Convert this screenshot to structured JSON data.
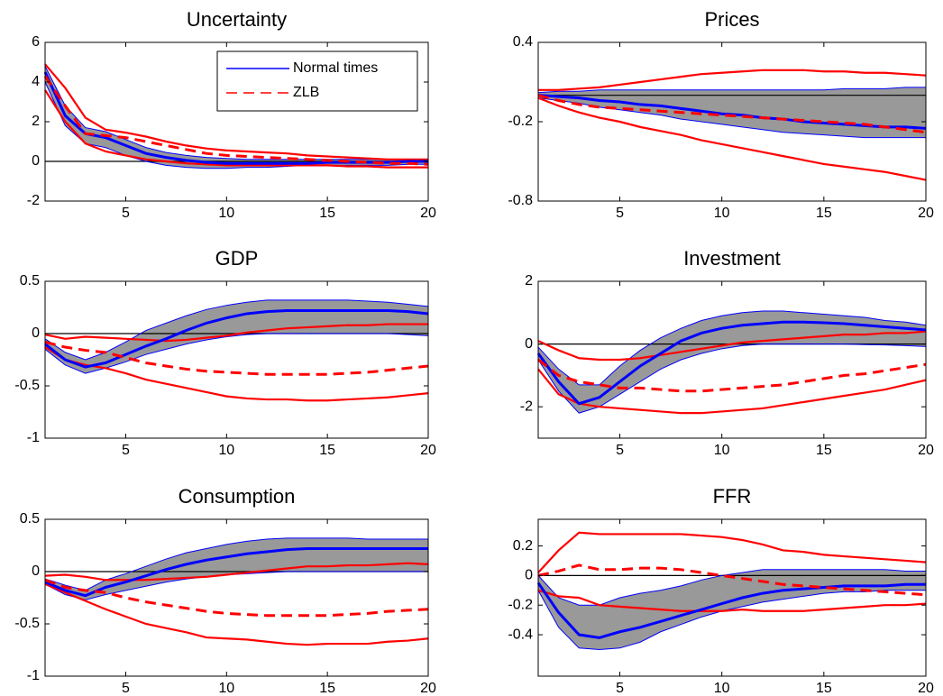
{
  "chart_data": [
    {
      "type": "line",
      "title": "Uncertainty",
      "legend": "upper right",
      "zero_line": true,
      "x": [
        1,
        2,
        3,
        4,
        5,
        6,
        7,
        8,
        9,
        10,
        11,
        12,
        13,
        14,
        15,
        16,
        17,
        18,
        19,
        20
      ],
      "xlim": [
        1,
        20
      ],
      "xticks": [
        5,
        10,
        15,
        20
      ],
      "ylim": [
        -2,
        6
      ],
      "yticks": [
        -2,
        0,
        2,
        4,
        6
      ],
      "series": [
        {
          "name": "Normal times",
          "color": "#0000ff",
          "band_fill": "#999999",
          "dash": false,
          "values": [
            4.5,
            2.3,
            1.4,
            1.2,
            0.8,
            0.4,
            0.2,
            0.05,
            -0.05,
            -0.1,
            -0.1,
            -0.1,
            -0.1,
            -0.1,
            -0.05,
            -0.05,
            -0.05,
            -0.05,
            0,
            0
          ],
          "lower": [
            4.0,
            1.8,
            0.9,
            0.7,
            0.3,
            0,
            -0.2,
            -0.3,
            -0.35,
            -0.35,
            -0.3,
            -0.3,
            -0.25,
            -0.2,
            -0.2,
            -0.2,
            -0.2,
            -0.2,
            -0.15,
            -0.15
          ],
          "upper": [
            4.8,
            2.8,
            1.7,
            1.5,
            1.1,
            0.7,
            0.45,
            0.3,
            0.2,
            0.15,
            0.1,
            0.1,
            0.1,
            0.1,
            0.1,
            0.1,
            0.1,
            0.1,
            0.1,
            0.1
          ]
        },
        {
          "name": "ZLB",
          "color": "#ff0000",
          "dash": true,
          "values": [
            4.3,
            2.8,
            1.4,
            1.3,
            1.2,
            1.0,
            0.8,
            0.6,
            0.4,
            0.3,
            0.25,
            0.2,
            0.15,
            0.1,
            0.05,
            0,
            -0.05,
            -0.1,
            -0.1,
            -0.15
          ],
          "lower": [
            3.6,
            2.0,
            0.9,
            0.5,
            0.3,
            0.1,
            0,
            -0.1,
            -0.15,
            -0.2,
            -0.2,
            -0.2,
            -0.2,
            -0.2,
            -0.2,
            -0.25,
            -0.25,
            -0.3,
            -0.3,
            -0.3
          ],
          "upper": [
            4.9,
            3.7,
            2.2,
            1.6,
            1.45,
            1.25,
            1.0,
            0.8,
            0.65,
            0.55,
            0.5,
            0.45,
            0.4,
            0.3,
            0.25,
            0.2,
            0.15,
            0.1,
            0.1,
            0.1
          ]
        }
      ]
    },
    {
      "type": "line",
      "title": "Prices",
      "zero_line": true,
      "x": [
        1,
        2,
        3,
        4,
        5,
        6,
        7,
        8,
        9,
        10,
        11,
        12,
        13,
        14,
        15,
        16,
        17,
        18,
        19,
        20
      ],
      "xlim": [
        1,
        20
      ],
      "xticks": [
        5,
        10,
        15,
        20
      ],
      "ylim": [
        -0.8,
        0.4
      ],
      "yticks": [
        -0.8,
        -0.2,
        0.4
      ],
      "series": [
        {
          "color": "#0000ff",
          "band_fill": "#999999",
          "dash": false,
          "values": [
            0,
            -0.01,
            -0.02,
            -0.04,
            -0.05,
            -0.07,
            -0.08,
            -0.1,
            -0.12,
            -0.14,
            -0.15,
            -0.17,
            -0.18,
            -0.2,
            -0.21,
            -0.22,
            -0.23,
            -0.24,
            -0.24,
            -0.25
          ],
          "lower": [
            -0.02,
            -0.04,
            -0.06,
            -0.09,
            -0.11,
            -0.13,
            -0.15,
            -0.18,
            -0.2,
            -0.22,
            -0.24,
            -0.26,
            -0.28,
            -0.29,
            -0.3,
            -0.31,
            -0.32,
            -0.32,
            -0.32,
            -0.32
          ],
          "upper": [
            0.02,
            0.03,
            0.03,
            0.04,
            0.04,
            0.04,
            0.04,
            0.04,
            0.04,
            0.04,
            0.04,
            0.04,
            0.04,
            0.04,
            0.04,
            0.05,
            0.05,
            0.05,
            0.06,
            0.06
          ]
        },
        {
          "color": "#ff0000",
          "dash": true,
          "values": [
            0,
            -0.04,
            -0.07,
            -0.09,
            -0.1,
            -0.11,
            -0.12,
            -0.13,
            -0.14,
            -0.15,
            -0.16,
            -0.17,
            -0.18,
            -0.19,
            -0.2,
            -0.21,
            -0.22,
            -0.24,
            -0.26,
            -0.28
          ],
          "lower": [
            -0.02,
            -0.08,
            -0.13,
            -0.17,
            -0.2,
            -0.24,
            -0.27,
            -0.3,
            -0.34,
            -0.37,
            -0.4,
            -0.43,
            -0.46,
            -0.49,
            -0.52,
            -0.54,
            -0.56,
            -0.58,
            -0.61,
            -0.64
          ],
          "upper": [
            0.04,
            0.04,
            0.05,
            0.06,
            0.08,
            0.1,
            0.12,
            0.14,
            0.16,
            0.17,
            0.18,
            0.19,
            0.19,
            0.19,
            0.18,
            0.18,
            0.17,
            0.17,
            0.16,
            0.15
          ]
        }
      ]
    },
    {
      "type": "line",
      "title": "GDP",
      "zero_line": true,
      "x": [
        1,
        2,
        3,
        4,
        5,
        6,
        7,
        8,
        9,
        10,
        11,
        12,
        13,
        14,
        15,
        16,
        17,
        18,
        19,
        20
      ],
      "xlim": [
        1,
        20
      ],
      "xticks": [
        5,
        10,
        15,
        20
      ],
      "ylim": [
        -1,
        0.5
      ],
      "yticks": [
        -1,
        -0.5,
        0,
        0.5
      ],
      "series": [
        {
          "color": "#0000ff",
          "band_fill": "#999999",
          "dash": false,
          "values": [
            -0.1,
            -0.25,
            -0.32,
            -0.28,
            -0.2,
            -0.12,
            -0.05,
            0.03,
            0.1,
            0.15,
            0.19,
            0.21,
            0.22,
            0.22,
            0.22,
            0.22,
            0.22,
            0.22,
            0.21,
            0.19
          ],
          "lower": [
            -0.15,
            -0.3,
            -0.38,
            -0.33,
            -0.27,
            -0.2,
            -0.15,
            -0.1,
            -0.06,
            -0.03,
            -0.01,
            0,
            0,
            0,
            0,
            0,
            0,
            0,
            -0.01,
            -0.02
          ],
          "upper": [
            -0.05,
            -0.18,
            -0.25,
            -0.18,
            -0.08,
            0.03,
            0.1,
            0.17,
            0.23,
            0.27,
            0.3,
            0.32,
            0.32,
            0.32,
            0.32,
            0.32,
            0.31,
            0.3,
            0.28,
            0.26
          ]
        },
        {
          "color": "#ff0000",
          "dash": true,
          "values": [
            -0.08,
            -0.13,
            -0.16,
            -0.18,
            -0.23,
            -0.28,
            -0.31,
            -0.34,
            -0.36,
            -0.37,
            -0.38,
            -0.39,
            -0.39,
            -0.39,
            -0.39,
            -0.38,
            -0.37,
            -0.35,
            -0.33,
            -0.31
          ],
          "lower": [
            -0.13,
            -0.25,
            -0.3,
            -0.33,
            -0.38,
            -0.44,
            -0.48,
            -0.52,
            -0.56,
            -0.6,
            -0.62,
            -0.63,
            -0.63,
            -0.64,
            -0.64,
            -0.63,
            -0.62,
            -0.61,
            -0.59,
            -0.57
          ],
          "upper": [
            -0.01,
            -0.05,
            -0.03,
            -0.04,
            -0.05,
            -0.06,
            -0.07,
            -0.06,
            -0.04,
            -0.02,
            0.01,
            0.03,
            0.05,
            0.06,
            0.07,
            0.08,
            0.08,
            0.09,
            0.09,
            0.09
          ]
        }
      ]
    },
    {
      "type": "line",
      "title": "Investment",
      "zero_line": true,
      "x": [
        1,
        2,
        3,
        4,
        5,
        6,
        7,
        8,
        9,
        10,
        11,
        12,
        13,
        14,
        15,
        16,
        17,
        18,
        19,
        20
      ],
      "xlim": [
        1,
        20
      ],
      "xticks": [
        5,
        10,
        15,
        20
      ],
      "ylim": [
        -3,
        2
      ],
      "yticks": [
        -2,
        0,
        2
      ],
      "series": [
        {
          "color": "#0000ff",
          "band_fill": "#999999",
          "dash": false,
          "values": [
            -0.3,
            -1.2,
            -1.9,
            -1.7,
            -1.2,
            -0.7,
            -0.3,
            0.1,
            0.35,
            0.5,
            0.6,
            0.65,
            0.7,
            0.7,
            0.68,
            0.65,
            0.6,
            0.55,
            0.5,
            0.45
          ],
          "lower": [
            -0.5,
            -1.5,
            -2.2,
            -2.0,
            -1.6,
            -1.2,
            -0.8,
            -0.5,
            -0.3,
            -0.15,
            -0.05,
            0,
            0,
            0,
            0,
            0,
            -0.02,
            -0.03,
            -0.05,
            -0.08
          ],
          "upper": [
            -0.1,
            -0.8,
            -1.3,
            -1.3,
            -0.7,
            -0.2,
            0.2,
            0.5,
            0.75,
            0.9,
            1.0,
            1.05,
            1.05,
            1.0,
            0.95,
            0.9,
            0.85,
            0.75,
            0.7,
            0.6
          ]
        },
        {
          "color": "#ff0000",
          "dash": true,
          "values": [
            -0.5,
            -1.0,
            -1.2,
            -1.3,
            -1.4,
            -1.4,
            -1.45,
            -1.5,
            -1.5,
            -1.45,
            -1.4,
            -1.35,
            -1.3,
            -1.2,
            -1.1,
            -1.0,
            -0.95,
            -0.85,
            -0.75,
            -0.65
          ],
          "lower": [
            -0.8,
            -1.6,
            -1.9,
            -2.0,
            -2.05,
            -2.1,
            -2.15,
            -2.2,
            -2.2,
            -2.15,
            -2.1,
            -2.05,
            -1.95,
            -1.85,
            -1.75,
            -1.65,
            -1.55,
            -1.45,
            -1.3,
            -1.15
          ],
          "upper": [
            0.1,
            -0.2,
            -0.45,
            -0.5,
            -0.5,
            -0.45,
            -0.35,
            -0.25,
            -0.15,
            -0.05,
            0.05,
            0.1,
            0.15,
            0.2,
            0.25,
            0.3,
            0.3,
            0.35,
            0.35,
            0.4
          ]
        }
      ]
    },
    {
      "type": "line",
      "title": "Consumption",
      "zero_line": true,
      "x": [
        1,
        2,
        3,
        4,
        5,
        6,
        7,
        8,
        9,
        10,
        11,
        12,
        13,
        14,
        15,
        16,
        17,
        18,
        19,
        20
      ],
      "xlim": [
        1,
        20
      ],
      "xticks": [
        5,
        10,
        15,
        20
      ],
      "ylim": [
        -1,
        0.5
      ],
      "yticks": [
        -1,
        -0.5,
        0,
        0.5
      ],
      "series": [
        {
          "color": "#0000ff",
          "band_fill": "#999999",
          "dash": false,
          "values": [
            -0.1,
            -0.18,
            -0.23,
            -0.15,
            -0.1,
            -0.04,
            0.02,
            0.07,
            0.11,
            0.14,
            0.17,
            0.19,
            0.21,
            0.22,
            0.22,
            0.22,
            0.22,
            0.22,
            0.22,
            0.22
          ],
          "lower": [
            -0.12,
            -0.22,
            -0.27,
            -0.22,
            -0.18,
            -0.14,
            -0.1,
            -0.07,
            -0.05,
            -0.03,
            -0.02,
            -0.01,
            0,
            0,
            0,
            0,
            0,
            0,
            0,
            0
          ],
          "upper": [
            -0.07,
            -0.13,
            -0.18,
            -0.08,
            -0.02,
            0.05,
            0.12,
            0.18,
            0.22,
            0.26,
            0.29,
            0.31,
            0.32,
            0.32,
            0.32,
            0.32,
            0.31,
            0.31,
            0.31,
            0.31
          ]
        },
        {
          "color": "#ff0000",
          "dash": true,
          "values": [
            -0.08,
            -0.15,
            -0.18,
            -0.2,
            -0.25,
            -0.29,
            -0.32,
            -0.35,
            -0.38,
            -0.4,
            -0.41,
            -0.42,
            -0.42,
            -0.42,
            -0.42,
            -0.41,
            -0.4,
            -0.38,
            -0.37,
            -0.36
          ],
          "lower": [
            -0.12,
            -0.2,
            -0.28,
            -0.36,
            -0.43,
            -0.5,
            -0.54,
            -0.58,
            -0.63,
            -0.64,
            -0.65,
            -0.67,
            -0.69,
            -0.7,
            -0.69,
            -0.69,
            -0.69,
            -0.67,
            -0.66,
            -0.64
          ],
          "upper": [
            -0.04,
            -0.03,
            -0.05,
            -0.08,
            -0.08,
            -0.08,
            -0.07,
            -0.06,
            -0.05,
            -0.03,
            -0.01,
            0.01,
            0.03,
            0.05,
            0.05,
            0.06,
            0.06,
            0.07,
            0.08,
            0.07
          ]
        }
      ]
    },
    {
      "type": "line",
      "title": "FFR",
      "zero_line": true,
      "x": [
        1,
        2,
        3,
        4,
        5,
        6,
        7,
        8,
        9,
        10,
        11,
        12,
        13,
        14,
        15,
        16,
        17,
        18,
        19,
        20
      ],
      "xlim": [
        1,
        20
      ],
      "xticks": [
        5,
        10,
        15,
        20
      ],
      "ylim": [
        -0.68,
        0.38
      ],
      "yticks": [
        -0.4,
        -0.2,
        0,
        0.2
      ],
      "series": [
        {
          "color": "#0000ff",
          "band_fill": "#999999",
          "dash": false,
          "values": [
            -0.05,
            -0.25,
            -0.4,
            -0.42,
            -0.38,
            -0.35,
            -0.31,
            -0.27,
            -0.23,
            -0.19,
            -0.15,
            -0.12,
            -0.1,
            -0.09,
            -0.08,
            -0.07,
            -0.07,
            -0.07,
            -0.06,
            -0.06
          ],
          "lower": [
            -0.1,
            -0.35,
            -0.49,
            -0.5,
            -0.49,
            -0.45,
            -0.38,
            -0.33,
            -0.28,
            -0.24,
            -0.21,
            -0.18,
            -0.16,
            -0.14,
            -0.12,
            -0.11,
            -0.11,
            -0.1,
            -0.1,
            -0.1
          ],
          "upper": [
            0,
            -0.15,
            -0.2,
            -0.2,
            -0.15,
            -0.12,
            -0.1,
            -0.07,
            -0.03,
            0,
            0.02,
            0.04,
            0.04,
            0.04,
            0.04,
            0.04,
            0.04,
            0.04,
            0.03,
            0.03
          ]
        },
        {
          "color": "#ff0000",
          "dash": true,
          "values": [
            0,
            0.03,
            0.07,
            0.04,
            0.04,
            0.05,
            0.05,
            0.04,
            0.02,
            0,
            -0.02,
            -0.04,
            -0.06,
            -0.07,
            -0.08,
            -0.09,
            -0.1,
            -0.11,
            -0.12,
            -0.13
          ],
          "lower": [
            -0.1,
            -0.14,
            -0.15,
            -0.2,
            -0.21,
            -0.22,
            -0.23,
            -0.24,
            -0.24,
            -0.24,
            -0.23,
            -0.24,
            -0.24,
            -0.24,
            -0.23,
            -0.22,
            -0.21,
            -0.2,
            -0.2,
            -0.19
          ],
          "upper": [
            0.02,
            0.17,
            0.29,
            0.28,
            0.28,
            0.28,
            0.28,
            0.28,
            0.27,
            0.26,
            0.24,
            0.21,
            0.17,
            0.16,
            0.14,
            0.13,
            0.12,
            0.11,
            0.1,
            0.09
          ]
        }
      ]
    }
  ]
}
